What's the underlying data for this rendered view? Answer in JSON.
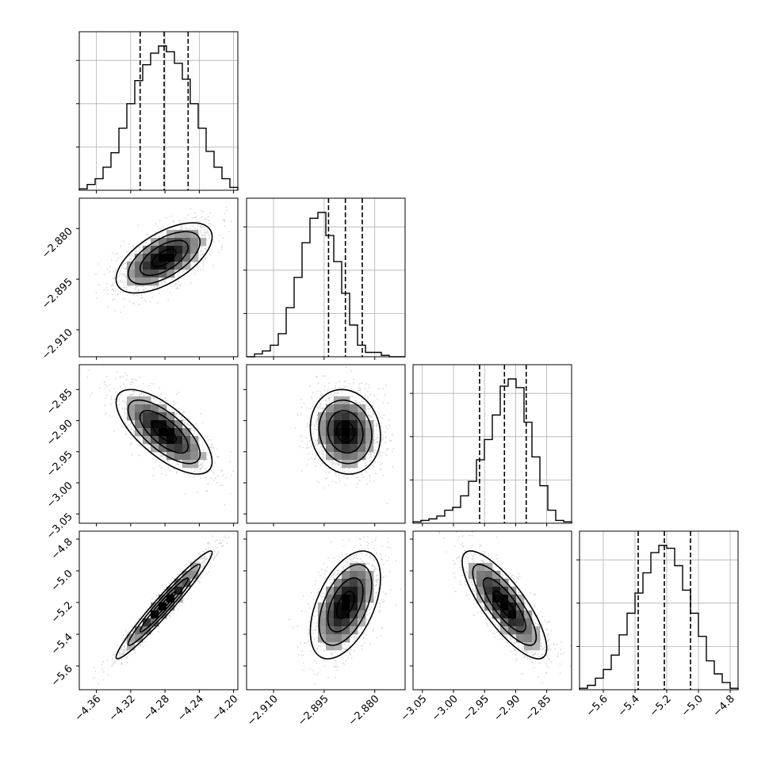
{
  "chart_data": {
    "type": "corner",
    "parameters": [
      {
        "index": 0,
        "range": [
          -4.38,
          -4.195
        ],
        "ticks": [
          -4.36,
          -4.32,
          -4.28,
          -4.24,
          -4.2
        ],
        "tick_labels": [
          "−4.36",
          "−4.32",
          "−4.28",
          "−4.24",
          "−4.20"
        ],
        "quantiles": [
          -4.309,
          -4.281,
          -4.253
        ],
        "hist": [
          0.01,
          0.04,
          0.08,
          0.16,
          0.26,
          0.43,
          0.6,
          0.76,
          0.87,
          0.95,
          1.0,
          0.96,
          0.88,
          0.77,
          0.6,
          0.43,
          0.27,
          0.16,
          0.08,
          0.02
        ]
      },
      {
        "index": 1,
        "range": [
          -2.918,
          -2.871
        ],
        "ticks": [
          -2.91,
          -2.895,
          -2.88
        ],
        "tick_labels": [
          "−2.910",
          "−2.895",
          "−2.880"
        ],
        "quantiles": [
          -2.8937,
          -2.8887,
          -2.8837
        ],
        "hist": [
          0.0,
          0.02,
          0.04,
          0.08,
          0.16,
          0.34,
          0.55,
          0.79,
          0.96,
          1.0,
          0.84,
          0.66,
          0.44,
          0.22,
          0.08,
          0.03,
          0.03,
          0.01,
          0.0,
          0.0
        ]
      },
      {
        "index": 2,
        "range": [
          -3.065,
          -2.81
        ],
        "ticks": [
          -3.05,
          -3.0,
          -2.95,
          -2.9,
          -2.85
        ],
        "tick_labels": [
          "−3.05",
          "−3.00",
          "−2.95",
          "−2.90",
          "−2.85"
        ],
        "quantiles": [
          -2.958,
          -2.918,
          -2.883
        ],
        "hist": [
          0.01,
          0.02,
          0.03,
          0.05,
          0.09,
          0.11,
          0.19,
          0.29,
          0.44,
          0.58,
          0.75,
          0.95,
          1.0,
          0.94,
          0.7,
          0.46,
          0.26,
          0.09,
          0.02,
          0.01
        ]
      },
      {
        "index": 3,
        "range": [
          -5.75,
          -4.75
        ],
        "ticks": [
          -5.6,
          -5.4,
          -5.2,
          -5.0,
          -4.8
        ],
        "tick_labels": [
          "−5.6",
          "−5.4",
          "−5.2",
          "−5.0",
          "−4.8"
        ],
        "quantiles": [
          -5.38,
          -5.215,
          -5.05
        ],
        "hist": [
          0.01,
          0.03,
          0.08,
          0.14,
          0.24,
          0.38,
          0.53,
          0.67,
          0.81,
          0.95,
          1.0,
          0.98,
          0.86,
          0.69,
          0.53,
          0.37,
          0.2,
          0.11,
          0.05,
          0.01
        ]
      }
    ],
    "pairs": [
      {
        "x": 0,
        "y": 1,
        "mean": [
          -4.281,
          -2.8887
        ],
        "sd": [
          0.028,
          0.0052
        ],
        "corr": 0.6
      },
      {
        "x": 0,
        "y": 2,
        "mean": [
          -4.281,
          -2.918
        ],
        "sd": [
          0.028,
          0.034
        ],
        "corr": -0.7
      },
      {
        "x": 1,
        "y": 2,
        "mean": [
          -2.8887,
          -2.918
        ],
        "sd": [
          0.0052,
          0.034
        ],
        "corr": -0.1
      },
      {
        "x": 0,
        "y": 3,
        "mean": [
          -4.281,
          -5.215
        ],
        "sd": [
          0.028,
          0.17
        ],
        "corr": 0.97
      },
      {
        "x": 1,
        "y": 3,
        "mean": [
          -2.8887,
          -5.215
        ],
        "sd": [
          0.0052,
          0.17
        ],
        "corr": 0.5
      },
      {
        "x": 2,
        "y": 3,
        "mean": [
          -2.918,
          -5.215
        ],
        "sd": [
          0.034,
          0.17
        ],
        "corr": -0.8
      }
    ],
    "contour_levels_sigma": [
      0.5,
      1.0,
      1.5,
      2.0
    ],
    "grid": true,
    "colors": {
      "line": "#000000",
      "points": "#b5b5b5",
      "grid": "#b0b0b0"
    }
  }
}
